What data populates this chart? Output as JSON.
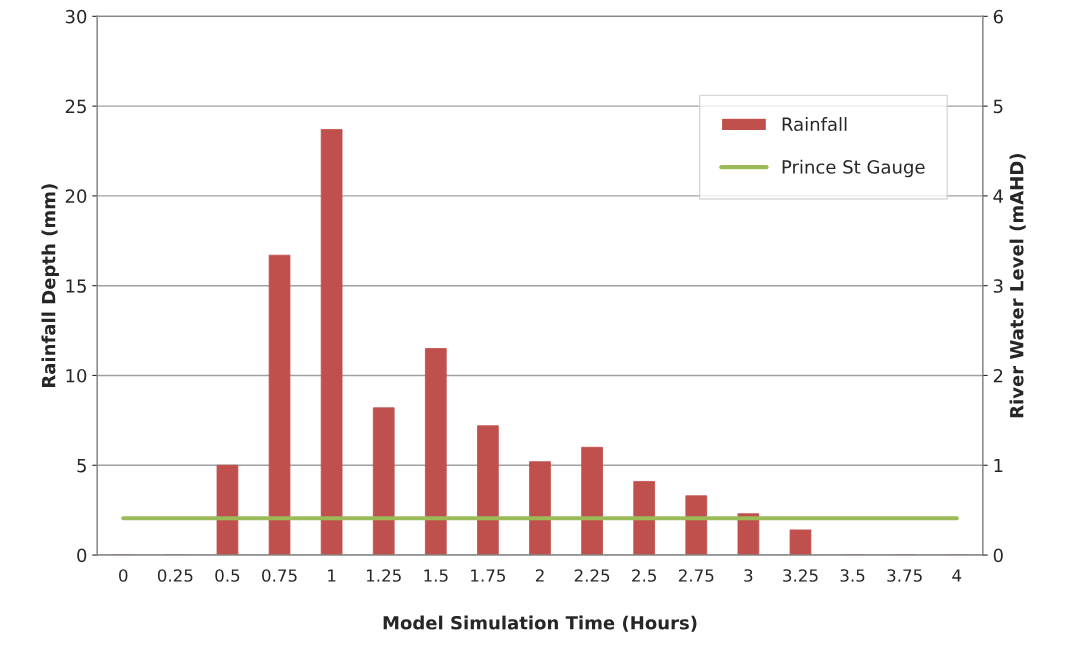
{
  "chart_data": {
    "type": "bar",
    "xlabel": "Model Simulation Time (Hours)",
    "ylabel": "Rainfall Depth (mm)",
    "y2label": "River Water Level (mAHD)",
    "categories": [
      "0",
      "0.25",
      "0.5",
      "0.75",
      "1",
      "1.25",
      "1.5",
      "1.75",
      "2",
      "2.25",
      "2.5",
      "2.75",
      "3",
      "3.25",
      "3.5",
      "3.75",
      "4"
    ],
    "series": [
      {
        "name": "Rainfall",
        "color": "#c0504d",
        "values": [
          0,
          0,
          5.0,
          16.7,
          23.7,
          8.2,
          11.5,
          7.2,
          5.2,
          6.0,
          4.1,
          3.3,
          2.3,
          1.4,
          0,
          0,
          0
        ]
      },
      {
        "name": "Prince St Gauge",
        "type": "line",
        "axis": "y2",
        "color": "#9bbb59",
        "values": [
          0.41,
          0.41,
          0.41,
          0.41,
          0.41,
          0.41,
          0.41,
          0.41,
          0.41,
          0.41,
          0.41,
          0.41,
          0.41,
          0.41,
          0.41,
          0.41,
          0.41
        ]
      }
    ],
    "ylim": [
      0,
      30
    ],
    "yticks": [
      0,
      5,
      10,
      15,
      20,
      25,
      30
    ],
    "y2lim": [
      0,
      6
    ],
    "y2ticks": [
      0,
      1,
      2,
      3,
      4,
      5,
      6
    ],
    "grid": "y",
    "legend": "top right"
  }
}
